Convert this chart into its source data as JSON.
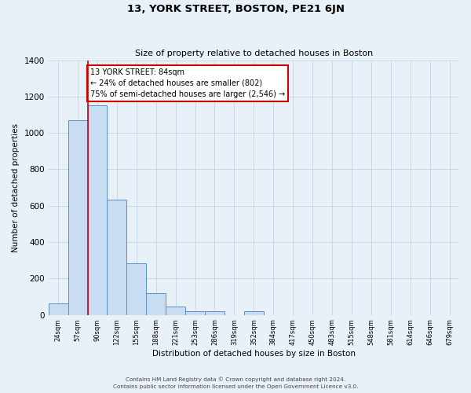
{
  "title": "13, YORK STREET, BOSTON, PE21 6JN",
  "subtitle": "Size of property relative to detached houses in Boston",
  "xlabel": "Distribution of detached houses by size in Boston",
  "ylabel": "Number of detached properties",
  "bar_labels": [
    "24sqm",
    "57sqm",
    "90sqm",
    "122sqm",
    "155sqm",
    "188sqm",
    "221sqm",
    "253sqm",
    "286sqm",
    "319sqm",
    "352sqm",
    "384sqm",
    "417sqm",
    "450sqm",
    "483sqm",
    "515sqm",
    "548sqm",
    "581sqm",
    "614sqm",
    "646sqm",
    "679sqm"
  ],
  "bar_values": [
    65,
    1070,
    1150,
    635,
    285,
    120,
    48,
    22,
    22,
    0,
    22,
    0,
    0,
    0,
    0,
    0,
    0,
    0,
    0,
    0,
    0
  ],
  "bar_color": "#c8ddf2",
  "bar_edge_color": "#5b8fc9",
  "red_line_index": 2,
  "annotation_title": "13 YORK STREET: 84sqm",
  "annotation_line1": "← 24% of detached houses are smaller (802)",
  "annotation_line2": "75% of semi-detached houses are larger (2,546) →",
  "annotation_box_color": "#ffffff",
  "annotation_box_edge": "#cc0000",
  "ylim": [
    0,
    1400
  ],
  "yticks": [
    0,
    200,
    400,
    600,
    800,
    1000,
    1200,
    1400
  ],
  "grid_color": "#c8d8e8",
  "background_color": "#e8f0f8",
  "footer1": "Contains HM Land Registry data © Crown copyright and database right 2024.",
  "footer2": "Contains public sector information licensed under the Open Government Licence v3.0."
}
